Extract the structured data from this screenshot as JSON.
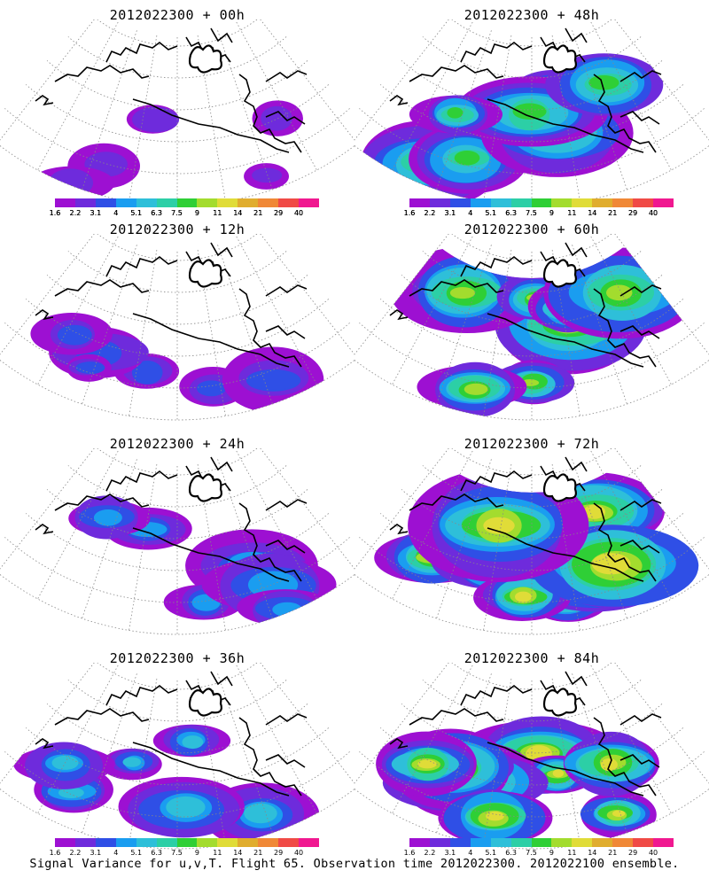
{
  "panels": [
    {
      "title": "2012022300 + 00h",
      "intensity": 0.15
    },
    {
      "title": "2012022300 + 48h",
      "intensity": 0.62
    },
    {
      "title": "2012022300 + 12h",
      "intensity": 0.25
    },
    {
      "title": "2012022300 + 60h",
      "intensity": 0.75
    },
    {
      "title": "2012022300 + 24h",
      "intensity": 0.33
    },
    {
      "title": "2012022300 + 72h",
      "intensity": 0.82
    },
    {
      "title": "2012022300 + 36h",
      "intensity": 0.48
    },
    {
      "title": "2012022300 + 84h",
      "intensity": 0.78
    }
  ],
  "colorbar": {
    "labels": [
      "1.6",
      "2.2",
      "3.1",
      "4",
      "5.1",
      "6.3",
      "7.5",
      "9",
      "11",
      "14",
      "21",
      "29",
      "40"
    ],
    "colors": [
      "#9d10d2",
      "#6e2bdc",
      "#2f4fe6",
      "#1a9df0",
      "#2ebfd9",
      "#2ccfa6",
      "#2fcf36",
      "#a3dc2e",
      "#e0dc38",
      "#e0ad2e",
      "#f08836",
      "#f04a46",
      "#f01890"
    ]
  },
  "footer": "Signal Variance for u,v,T. Flight 65. Observation time 2012022300. 2012022100 ensemble."
}
